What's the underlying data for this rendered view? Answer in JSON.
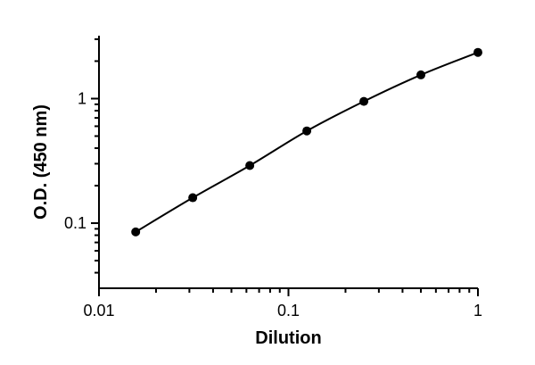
{
  "chart_data": {
    "type": "scatter",
    "title": "",
    "xlabel": "Dilution",
    "ylabel": "O.D. (450 nm)",
    "xscale": "log",
    "yscale": "log",
    "xlim": [
      0.01,
      1
    ],
    "ylim": [
      0.03,
      3.2
    ],
    "x_ticks": [
      {
        "value": 0.01,
        "label": "0.01"
      },
      {
        "value": 0.1,
        "label": "0.1"
      },
      {
        "value": 1,
        "label": "1"
      }
    ],
    "y_ticks": [
      {
        "value": 0.1,
        "label": "0.1"
      },
      {
        "value": 1,
        "label": "1"
      }
    ],
    "grid": false,
    "legend": "none",
    "fit_curve": true,
    "marker_color": "#000000",
    "series": [
      {
        "x": [
          0.015625,
          0.03125,
          0.0625,
          0.125,
          0.25,
          0.5,
          1
        ],
        "y": [
          0.085,
          0.16,
          0.29,
          0.55,
          0.95,
          1.55,
          2.35
        ]
      }
    ]
  }
}
